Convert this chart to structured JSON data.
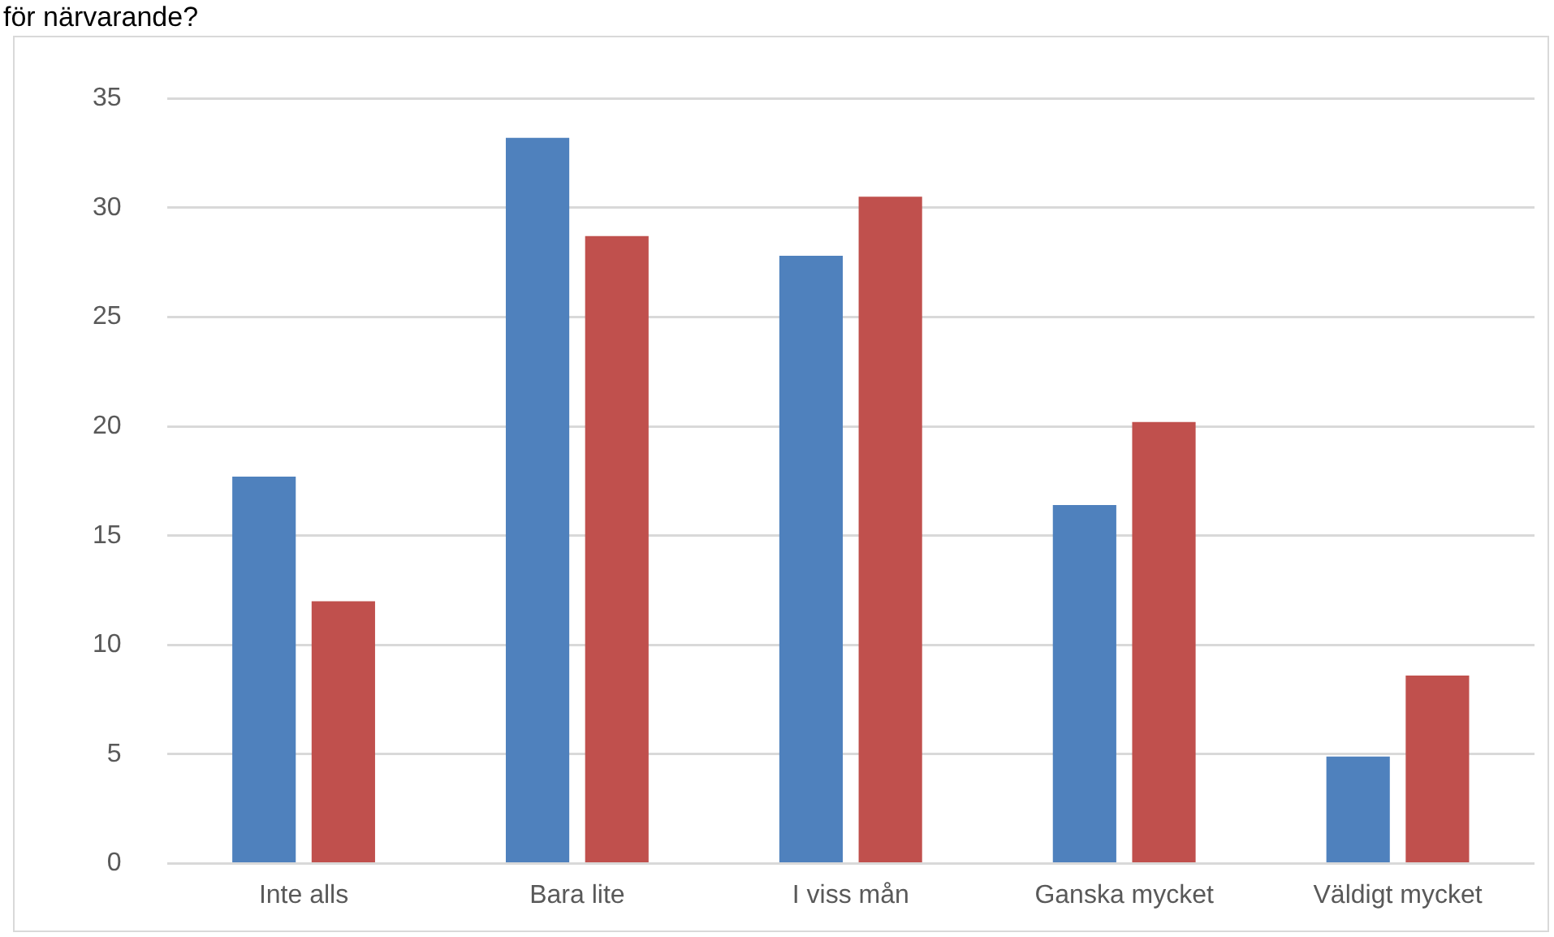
{
  "chart_data": {
    "type": "bar",
    "title": "för närvarande?",
    "categories": [
      "Inte alls",
      "Bara lite",
      "I viss mån",
      "Ganska mycket",
      "Väldigt mycket"
    ],
    "series": [
      {
        "color": "#4f81bd",
        "values": [
          17.7,
          33.2,
          27.8,
          16.4,
          4.9
        ]
      },
      {
        "color": "#c0504d",
        "values": [
          12.0,
          28.7,
          30.5,
          20.2,
          8.6
        ]
      }
    ],
    "ylim": [
      0,
      35
    ],
    "yticks": [
      0,
      5,
      10,
      15,
      20,
      25,
      30,
      35
    ],
    "grid": "y",
    "legend": false
  }
}
